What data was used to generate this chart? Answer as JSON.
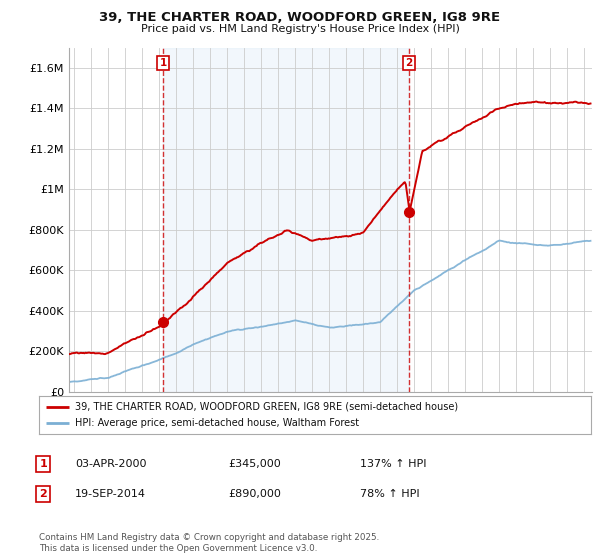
{
  "title": "39, THE CHARTER ROAD, WOODFORD GREEN, IG8 9RE",
  "subtitle": "Price paid vs. HM Land Registry's House Price Index (HPI)",
  "ylabel_ticks": [
    "£0",
    "£200K",
    "£400K",
    "£600K",
    "£800K",
    "£1M",
    "£1.2M",
    "£1.4M",
    "£1.6M"
  ],
  "ytick_values": [
    0,
    200000,
    400000,
    600000,
    800000,
    1000000,
    1200000,
    1400000,
    1600000
  ],
  "ylim": [
    0,
    1700000
  ],
  "xlim_start": 1994.7,
  "xlim_end": 2025.5,
  "sale1_date": 2000.25,
  "sale1_price": 345000,
  "sale2_date": 2014.72,
  "sale2_price": 890000,
  "legend_house": "39, THE CHARTER ROAD, WOODFORD GREEN, IG8 9RE (semi-detached house)",
  "legend_hpi": "HPI: Average price, semi-detached house, Waltham Forest",
  "annotation1_label": "1",
  "annotation1_text": "03-APR-2000",
  "annotation1_price": "£345,000",
  "annotation1_hpi": "137% ↑ HPI",
  "annotation2_label": "2",
  "annotation2_text": "19-SEP-2014",
  "annotation2_price": "£890,000",
  "annotation2_hpi": "78% ↑ HPI",
  "footer": "Contains HM Land Registry data © Crown copyright and database right 2025.\nThis data is licensed under the Open Government Licence v3.0.",
  "line_color_house": "#cc0000",
  "line_color_hpi": "#7bafd4",
  "background_color": "#ffffff",
  "grid_color": "#cccccc",
  "shade_color": "#ddeeff"
}
